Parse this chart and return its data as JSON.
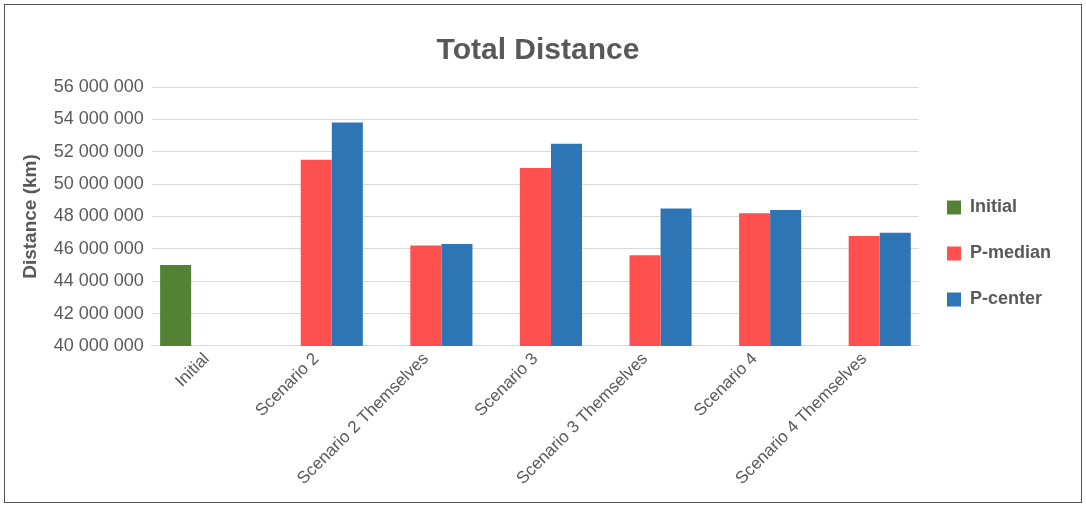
{
  "chart_data": {
    "type": "bar",
    "title": "Total Distance",
    "ylabel": "Distance (km)",
    "categories": [
      "Initial",
      "Scenario 2",
      "Scenario 2 Themselves",
      "Scenario 3",
      "Scenario 3 Themselves",
      "Scenario 4",
      "Scenario 4 Themselves"
    ],
    "series": [
      {
        "name": "Initial",
        "color": "#548235",
        "values": [
          45000000,
          null,
          null,
          null,
          null,
          null,
          null
        ]
      },
      {
        "name": "P-median",
        "color": "#ff5050",
        "values": [
          null,
          51500000,
          46200000,
          51000000,
          45600000,
          48200000,
          46800000
        ]
      },
      {
        "name": "P-center",
        "color": "#2e75b6",
        "values": [
          null,
          53800000,
          46300000,
          52500000,
          48500000,
          48400000,
          47000000
        ]
      }
    ],
    "ylim": [
      40000000,
      56000000
    ],
    "yticks": [
      40000000,
      42000000,
      44000000,
      46000000,
      48000000,
      50000000,
      52000000,
      54000000,
      56000000
    ],
    "grid": "y",
    "legend": "right"
  }
}
